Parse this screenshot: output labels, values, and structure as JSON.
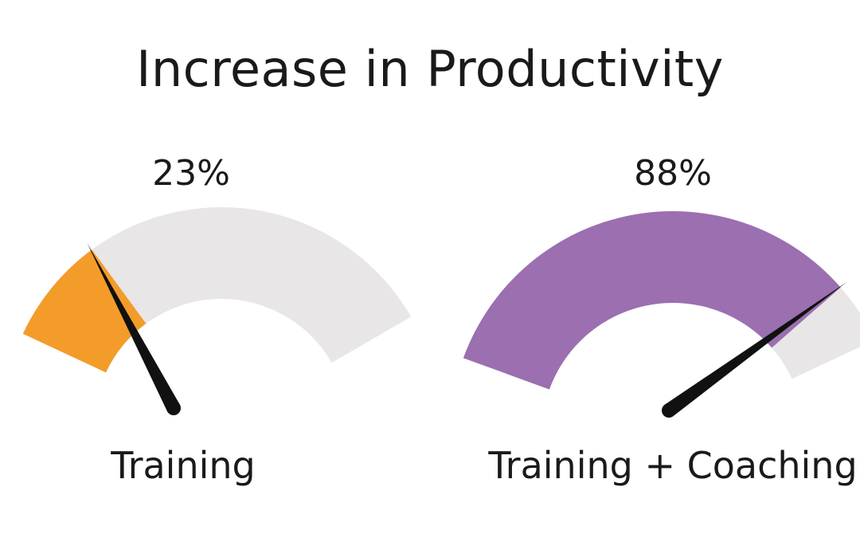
{
  "chart_data": {
    "type": "gauge",
    "title": "Increase in Productivity",
    "gauges": [
      {
        "label": "Training",
        "value_label": "23%",
        "value": 23,
        "max": 100,
        "color": "#f39c2a",
        "track_color": "#e8e6e6"
      },
      {
        "label": "Training + Coaching",
        "value_label": "88%",
        "value": 88,
        "max": 100,
        "color": "#9b6fb0",
        "track_color": "#e8e6e6"
      }
    ]
  }
}
